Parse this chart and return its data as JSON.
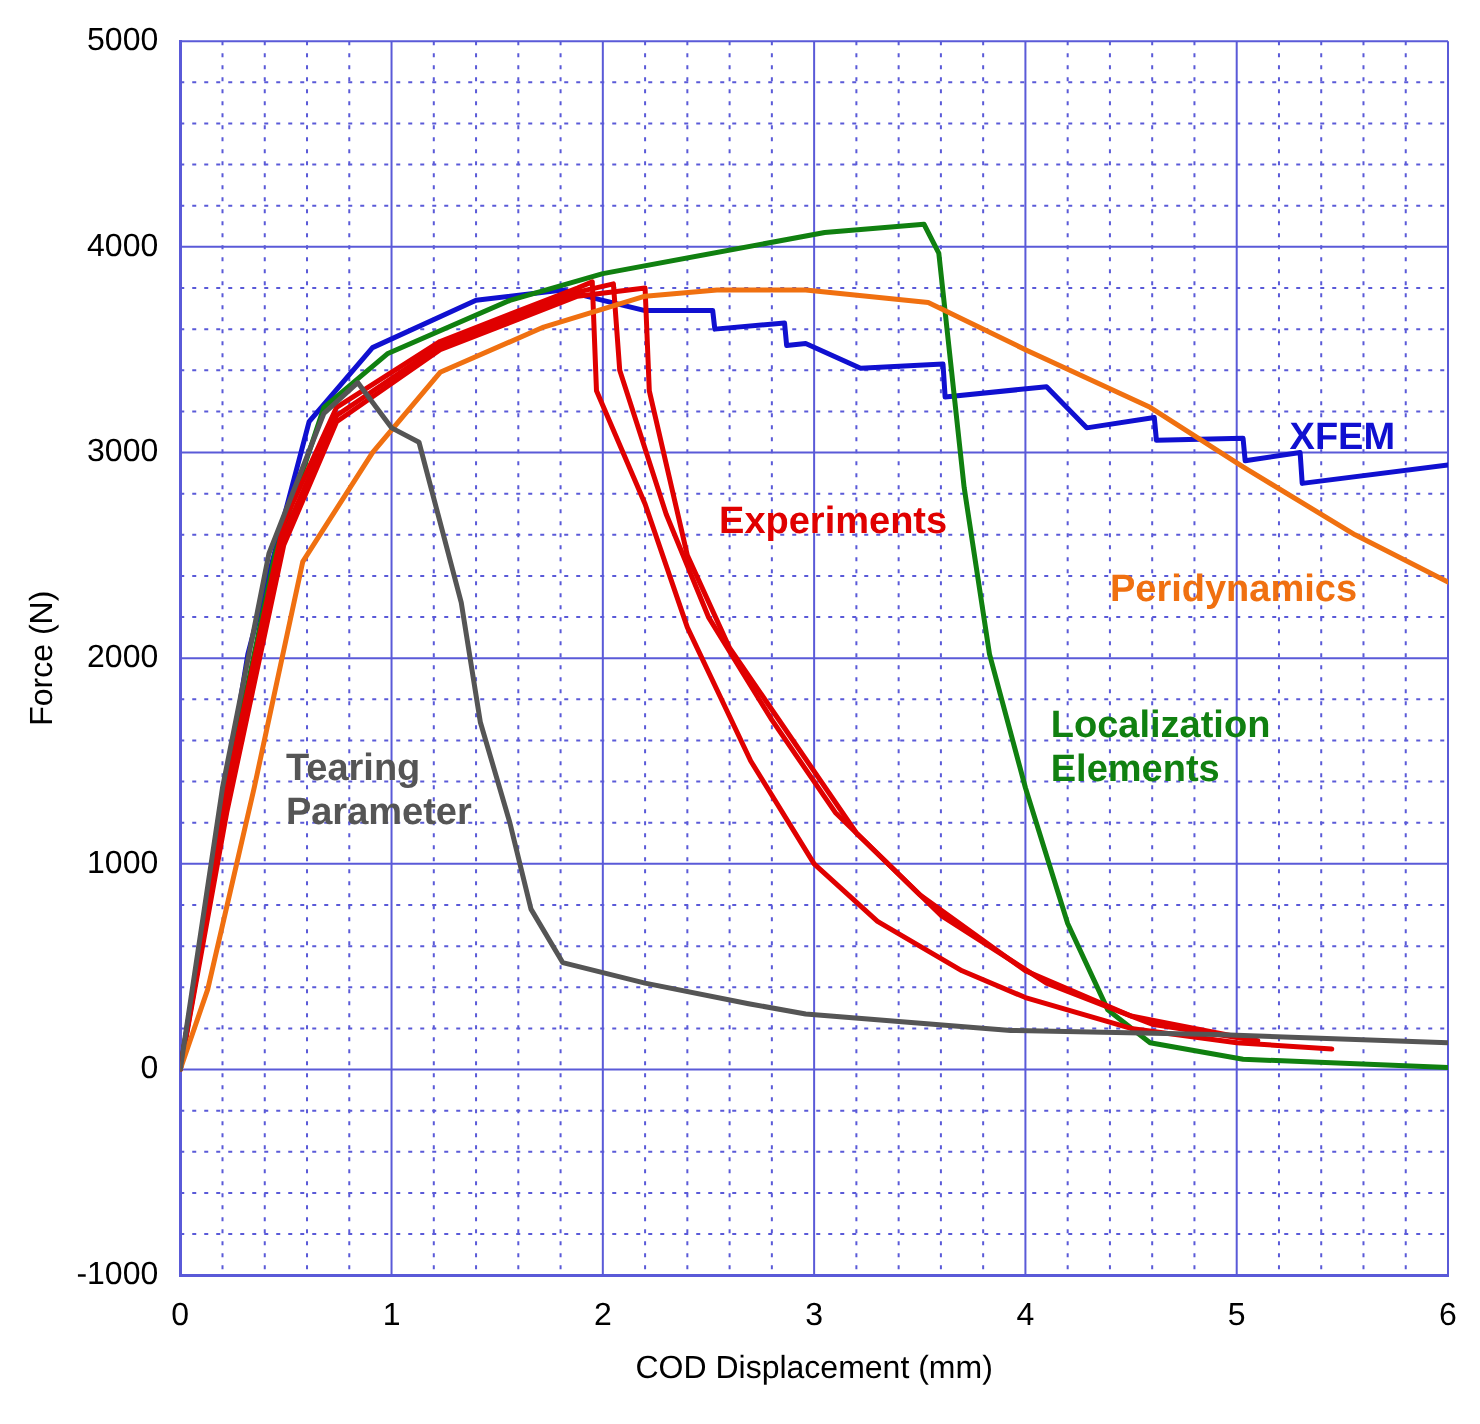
{
  "chart_data": {
    "type": "line",
    "xlabel": "COD Displacement (mm)",
    "ylabel": "Force (N)",
    "xlim": [
      0,
      6
    ],
    "ylim": [
      -1000,
      5000
    ],
    "xticks": [
      0,
      {
        "value": 0.2,
        "label": null
      },
      {
        "value": 0.4,
        "label": null
      },
      {
        "value": 0.6,
        "label": null
      },
      {
        "value": 0.8,
        "label": null
      },
      1,
      {
        "value": 1.2,
        "label": null
      },
      {
        "value": 1.4,
        "label": null
      },
      {
        "value": 1.6,
        "label": null
      },
      {
        "value": 1.8,
        "label": null
      },
      2,
      {
        "value": 2.2,
        "label": null
      },
      {
        "value": 2.4,
        "label": null
      },
      {
        "value": 2.6,
        "label": null
      },
      {
        "value": 2.8,
        "label": null
      },
      3,
      {
        "value": 3.2,
        "label": null
      },
      {
        "value": 3.4,
        "label": null
      },
      {
        "value": 3.6,
        "label": null
      },
      {
        "value": 3.8,
        "label": null
      },
      4,
      {
        "value": 4.2,
        "label": null
      },
      {
        "value": 4.4,
        "label": null
      },
      {
        "value": 4.6,
        "label": null
      },
      {
        "value": 4.8,
        "label": null
      },
      5,
      {
        "value": 5.2,
        "label": null
      },
      {
        "value": 5.4,
        "label": null
      },
      {
        "value": 5.6,
        "label": null
      },
      {
        "value": 5.8,
        "label": null
      },
      6
    ],
    "yticks": [
      -1000,
      {
        "value": -800,
        "label": null
      },
      {
        "value": -600,
        "label": null
      },
      {
        "value": -400,
        "label": null
      },
      {
        "value": -200,
        "label": null
      },
      0,
      {
        "value": 200,
        "label": null
      },
      {
        "value": 400,
        "label": null
      },
      {
        "value": 600,
        "label": null
      },
      {
        "value": 800,
        "label": null
      },
      1000,
      {
        "value": 1200,
        "label": null
      },
      {
        "value": 1400,
        "label": null
      },
      {
        "value": 1600,
        "label": null
      },
      {
        "value": 1800,
        "label": null
      },
      2000,
      {
        "value": 2200,
        "label": null
      },
      {
        "value": 2400,
        "label": null
      },
      {
        "value": 2600,
        "label": null
      },
      {
        "value": 2800,
        "label": null
      },
      3000,
      {
        "value": 3200,
        "label": null
      },
      {
        "value": 3400,
        "label": null
      },
      {
        "value": 3600,
        "label": null
      },
      {
        "value": 3800,
        "label": null
      },
      4000,
      {
        "value": 4200,
        "label": null
      },
      {
        "value": 4400,
        "label": null
      },
      {
        "value": 4600,
        "label": null
      },
      {
        "value": 4800,
        "label": null
      },
      5000
    ],
    "grid": true,
    "legend": false,
    "marker": "none",
    "line_style": "solid",
    "series": [
      {
        "name": "Tearing Parameter",
        "color": "#555555",
        "x": [
          0,
          0.2,
          0.42,
          0.68,
          0.84,
          1.0,
          1.13,
          1.23,
          1.33,
          1.42,
          1.56,
          1.66,
          1.81,
          2.2,
          2.69,
          2.96,
          3.93,
          4.9,
          6
        ],
        "values": [
          0,
          1370,
          2510,
          3190,
          3340,
          3120,
          3050,
          2660,
          2270,
          1690,
          1200,
          780,
          520,
          420,
          320,
          270,
          190,
          170,
          130
        ]
      },
      {
        "name": "Peridynamics",
        "color": "#f07010",
        "x": [
          0,
          0.13,
          0.35,
          0.58,
          0.91,
          1.23,
          1.72,
          2.2,
          2.54,
          2.96,
          3.54,
          4.0,
          4.59,
          5.03,
          5.56,
          6
        ],
        "values": [
          0,
          390,
          1370,
          2470,
          3000,
          3390,
          3610,
          3760,
          3790,
          3790,
          3730,
          3500,
          3220,
          2930,
          2600,
          2370
        ]
      },
      {
        "name": "Experiments",
        "color": "#e00000",
        "x": [
          0,
          0.22,
          0.49,
          0.74,
          1.23,
          1.88,
          1.95,
          1.97,
          2.2,
          2.4,
          2.7,
          3.0,
          3.3,
          3.7,
          4.0,
          4.5,
          5.0,
          5.45
        ],
        "values": [
          0,
          1370,
          2660,
          3220,
          3540,
          3800,
          3830,
          3300,
          2750,
          2150,
          1500,
          1000,
          720,
          480,
          350,
          200,
          130,
          100
        ]
      },
      {
        "color": "#e00000",
        "x": [
          0,
          0.22,
          0.49,
          0.74,
          1.23,
          1.88,
          2.05,
          2.08,
          2.3,
          2.5,
          2.8,
          3.1,
          3.5,
          4.0,
          4.5,
          5.0
        ],
        "values": [
          0,
          1300,
          2600,
          3180,
          3520,
          3780,
          3820,
          3400,
          2700,
          2200,
          1700,
          1250,
          850,
          480,
          260,
          160
        ]
      },
      {
        "color": "#e00000",
        "x": [
          0,
          0.22,
          0.49,
          0.74,
          1.23,
          1.88,
          2.2,
          2.22,
          2.4,
          2.6,
          2.9,
          3.2,
          3.6,
          4.1,
          4.6,
          5.1
        ],
        "values": [
          0,
          1250,
          2550,
          3150,
          3500,
          3760,
          3800,
          3300,
          2500,
          2050,
          1600,
          1150,
          750,
          420,
          220,
          140
        ]
      },
      {
        "name": "Localization Elements",
        "color": "#108010",
        "x": [
          0,
          0.25,
          0.45,
          0.68,
          0.98,
          1.56,
          2.0,
          3.05,
          3.52,
          3.59,
          3.71,
          3.83,
          4.0,
          4.2,
          4.39,
          4.59,
          5.03,
          6
        ],
        "values": [
          0,
          1530,
          2510,
          3220,
          3480,
          3740,
          3870,
          4070,
          4110,
          3970,
          2830,
          2020,
          1370,
          710,
          290,
          130,
          50,
          10
        ]
      },
      {
        "name": "XFEM",
        "color": "#1010d0",
        "x": [
          0,
          0.32,
          0.61,
          0.91,
          1.4,
          1.81,
          2.0,
          2.2,
          2.52,
          2.53,
          2.86,
          2.87,
          2.96,
          3.22,
          3.61,
          3.62,
          4.1,
          4.29,
          4.61,
          4.62,
          5.03,
          5.04,
          5.3,
          5.31,
          6
        ],
        "values": [
          0,
          2020,
          3150,
          3510,
          3740,
          3790,
          3740,
          3690,
          3690,
          3600,
          3630,
          3520,
          3530,
          3410,
          3430,
          3270,
          3320,
          3120,
          3170,
          3060,
          3070,
          2960,
          3000,
          2850,
          2940
        ]
      }
    ]
  }
}
